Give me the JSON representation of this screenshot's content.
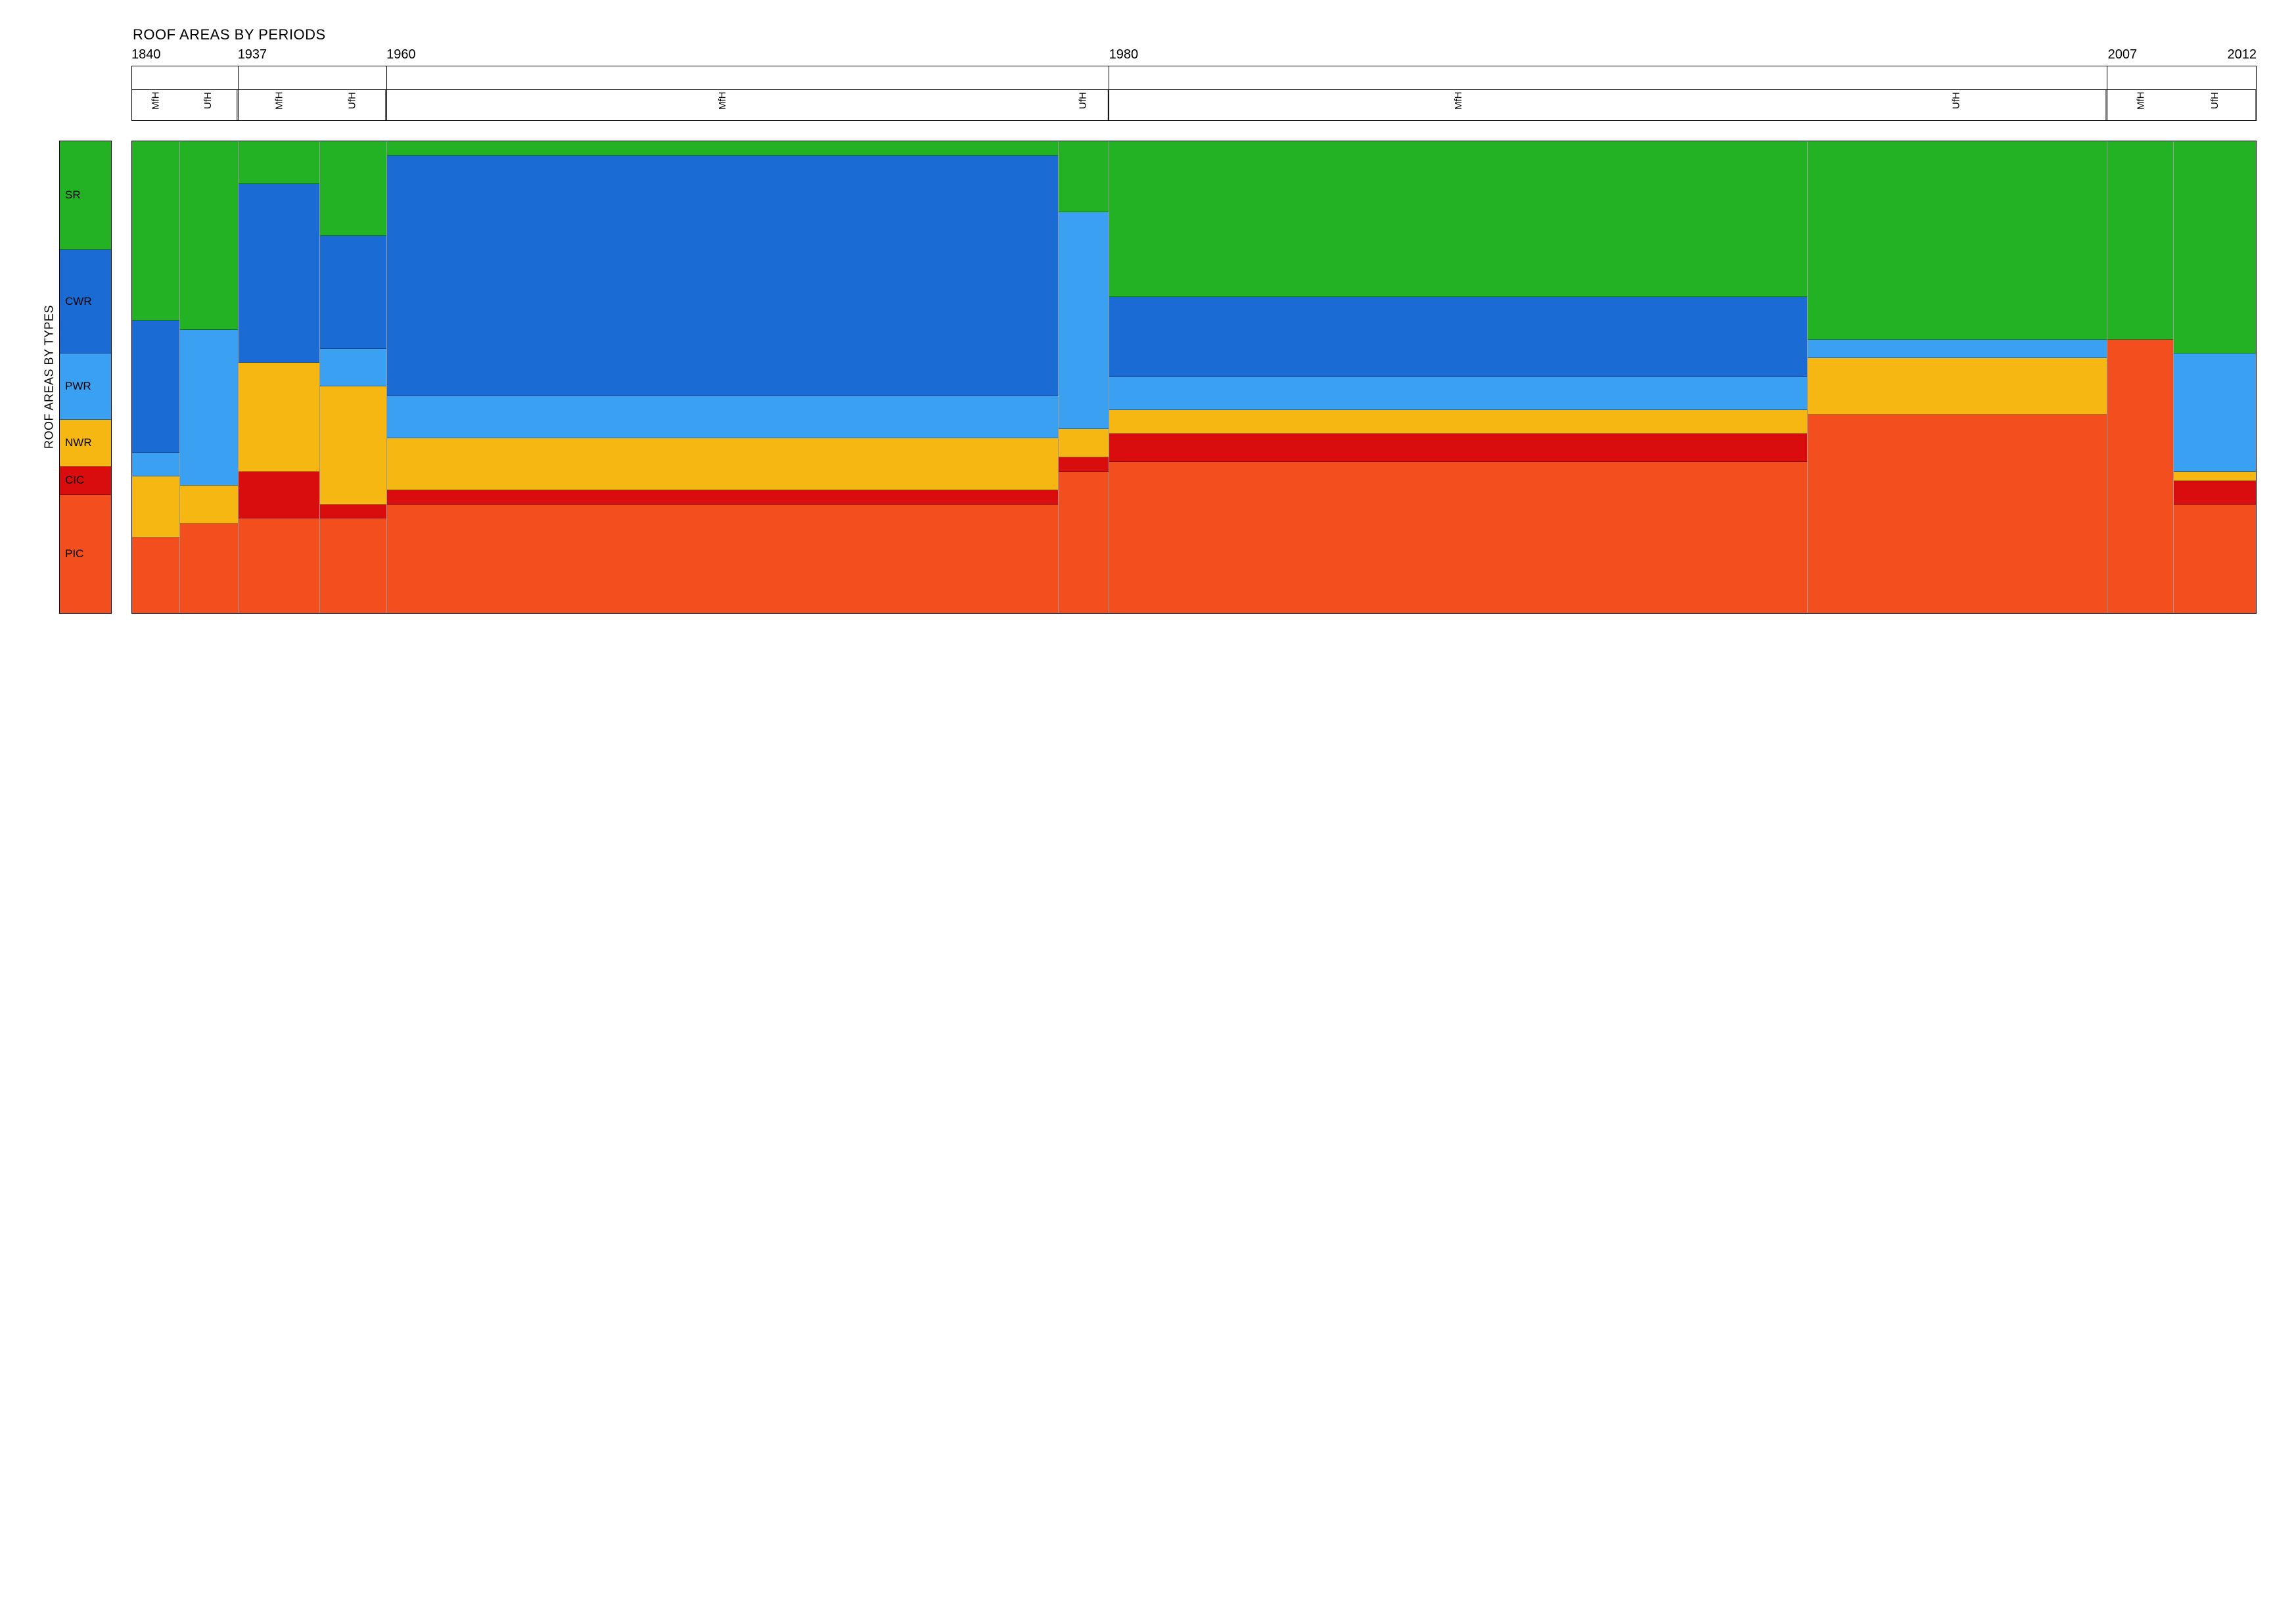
{
  "chart": {
    "type": "mosaic-stacked-bar",
    "title_top": "ROOF AREAS BY PERIODS",
    "title_left": "ROOF AREAS BY TYPES",
    "title_fontsize": 22,
    "axis_label_fontsize": 18,
    "sub_label_fontsize": 15,
    "background_color": "#ffffff",
    "border_color": "#000000",
    "seg_border_color": "rgba(0,0,0,0.35)",
    "periods": [
      {
        "year_label": "1840",
        "width_pct": 5.0,
        "subs": [
          {
            "label": "MfH",
            "width_pct": 45
          },
          {
            "label": "UfH",
            "width_pct": 55
          }
        ]
      },
      {
        "year_label": "1937",
        "width_pct": 7.0,
        "subs": [
          {
            "label": "MfH",
            "width_pct": 55
          },
          {
            "label": "UfH",
            "width_pct": 45
          }
        ]
      },
      {
        "year_label": "1960",
        "width_pct": 34.0,
        "subs": [
          {
            "label": "MfH",
            "width_pct": 93
          },
          {
            "label": "UfH",
            "width_pct": 7
          }
        ]
      },
      {
        "year_label": "1980",
        "width_pct": 47.0,
        "subs": [
          {
            "label": "MfH",
            "width_pct": 70
          },
          {
            "label": "UfH",
            "width_pct": 30
          }
        ]
      },
      {
        "year_label": "2007",
        "end_year_label": "2012",
        "width_pct": 7.0,
        "subs": [
          {
            "label": "MfH",
            "width_pct": 45
          },
          {
            "label": "UfH",
            "width_pct": 55
          }
        ]
      }
    ],
    "types": [
      {
        "code": "SR",
        "color": "#23b223",
        "legend_height_pct": 23
      },
      {
        "code": "CWR",
        "color": "#1a6bd4",
        "legend_height_pct": 22
      },
      {
        "code": "PWR",
        "color": "#3aa0f2",
        "legend_height_pct": 14
      },
      {
        "code": "NWR",
        "color": "#f6b713",
        "legend_height_pct": 10
      },
      {
        "code": "CIC",
        "color": "#d90d0d",
        "legend_height_pct": 6
      },
      {
        "code": "PIC",
        "color": "#f24e1e",
        "legend_height_pct": 25
      }
    ],
    "columns": [
      {
        "period": 0,
        "sub": 0,
        "stack": {
          "SR": 38,
          "CWR": 28,
          "PWR": 5,
          "NWR": 13,
          "CIC": 0,
          "PIC": 16
        }
      },
      {
        "period": 0,
        "sub": 1,
        "stack": {
          "SR": 40,
          "CWR": 0,
          "PWR": 33,
          "NWR": 8,
          "CIC": 0,
          "PIC": 19
        }
      },
      {
        "period": 1,
        "sub": 0,
        "stack": {
          "SR": 9,
          "CWR": 38,
          "PWR": 0,
          "NWR": 23,
          "CIC": 10,
          "PIC": 20
        }
      },
      {
        "period": 1,
        "sub": 1,
        "stack": {
          "SR": 20,
          "CWR": 24,
          "PWR": 8,
          "NWR": 25,
          "CIC": 3,
          "PIC": 20
        }
      },
      {
        "period": 2,
        "sub": 0,
        "stack": {
          "SR": 3,
          "CWR": 51,
          "PWR": 9,
          "NWR": 11,
          "CIC": 3,
          "PIC": 23
        }
      },
      {
        "period": 2,
        "sub": 1,
        "stack": {
          "SR": 15,
          "CWR": 0,
          "PWR": 46,
          "NWR": 6,
          "CIC": 3,
          "PIC": 30
        }
      },
      {
        "period": 3,
        "sub": 0,
        "stack": {
          "SR": 33,
          "CWR": 17,
          "PWR": 7,
          "NWR": 5,
          "CIC": 6,
          "PIC": 32
        }
      },
      {
        "period": 3,
        "sub": 1,
        "stack": {
          "SR": 42,
          "CWR": 0,
          "PWR": 4,
          "NWR": 12,
          "CIC": 0,
          "PIC": 42
        }
      },
      {
        "period": 4,
        "sub": 0,
        "stack": {
          "SR": 42,
          "CWR": 0,
          "PWR": 0,
          "NWR": 0,
          "CIC": 0,
          "PIC": 58
        }
      },
      {
        "period": 4,
        "sub": 1,
        "stack": {
          "SR": 45,
          "CWR": 0,
          "PWR": 25,
          "NWR": 2,
          "CIC": 5,
          "PIC": 23
        }
      }
    ]
  }
}
